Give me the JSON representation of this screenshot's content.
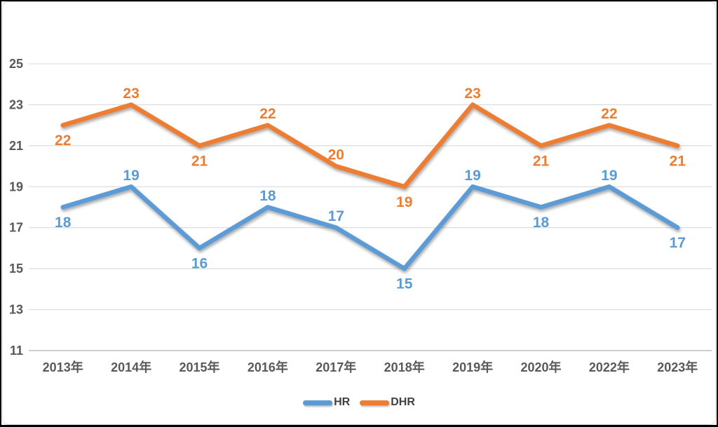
{
  "chart_data": {
    "type": "line",
    "title": "",
    "xlabel": "",
    "ylabel": "",
    "categories": [
      "2013年",
      "2014年",
      "2015年",
      "2016年",
      "2017年",
      "2018年",
      "2019年",
      "2020年",
      "2022年",
      "2023年"
    ],
    "series": [
      {
        "name": "HR",
        "color": "#5B9BD5",
        "values": [
          18,
          19,
          16,
          18,
          17,
          15,
          19,
          18,
          19,
          17
        ],
        "label_positions": [
          "below",
          "above",
          "below",
          "above",
          "above",
          "below",
          "above",
          "below",
          "above",
          "below"
        ]
      },
      {
        "name": "DHR",
        "color": "#ED7D31",
        "values": [
          22,
          23,
          21,
          22,
          20,
          19,
          23,
          21,
          22,
          21
        ],
        "label_positions": [
          "below",
          "above",
          "below",
          "above",
          "above",
          "below",
          "above",
          "below",
          "above",
          "below"
        ]
      }
    ],
    "ylim": [
      11,
      25
    ],
    "yticks": [
      11,
      13,
      15,
      17,
      19,
      21,
      23,
      25
    ],
    "grid": true,
    "show_data_labels": true,
    "legend_position": "bottom"
  },
  "colors": {
    "axis_text": "#595959",
    "gridline": "#D9D9D9",
    "axis_line": "#BFBFBF",
    "legend_text": "#404040",
    "background": "#FFFFFF",
    "outer_border": "#000000",
    "chart_border": "#D9D9D9"
  }
}
